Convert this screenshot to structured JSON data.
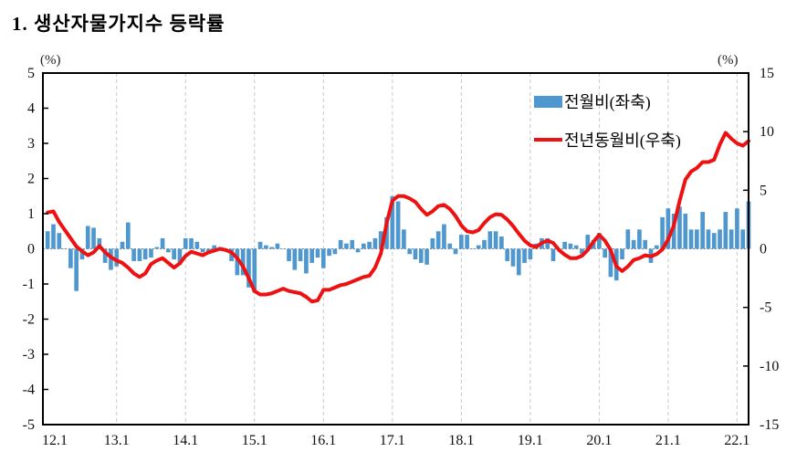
{
  "title": "1. 생산자물가지수 등락률",
  "left_axis": {
    "unit": "(%)",
    "min": -5,
    "max": 5,
    "ticks": [
      5,
      4,
      3,
      2,
      1,
      0,
      -1,
      -2,
      -3,
      -4,
      -5
    ]
  },
  "right_axis": {
    "unit": "(%)",
    "min": -15,
    "max": 15,
    "ticks": [
      15,
      10,
      5,
      0,
      -5,
      -10,
      -15
    ]
  },
  "x_axis": {
    "labels": [
      "12.1",
      "13.1",
      "14.1",
      "15.1",
      "16.1",
      "17.1",
      "18.1",
      "19.1",
      "20.1",
      "21.1",
      "22.1"
    ]
  },
  "legend": {
    "bar_label": "전월비(좌축)",
    "line_label": "전년동월비(우축)"
  },
  "colors": {
    "bar": "#4E97CF",
    "line": "#EE1111",
    "grid": "#c9c9c9",
    "zero": "#8a8a8a",
    "axis": "#000000"
  },
  "chart_data": {
    "type": "bar+line",
    "x_start": "2012.01",
    "x_end": "2022.03",
    "months_per_gridline": 12,
    "series": [
      {
        "name": "전월비(좌축)",
        "type": "bar",
        "axis": "left",
        "axis_range": [
          -5,
          5
        ],
        "values": [
          0.5,
          0.7,
          0.45,
          0.0,
          -0.55,
          -1.2,
          -0.3,
          0.65,
          0.6,
          0.3,
          -0.4,
          -0.6,
          -0.5,
          0.2,
          0.75,
          -0.35,
          -0.35,
          -0.3,
          -0.25,
          0.05,
          0.3,
          -0.1,
          -0.3,
          -0.45,
          0.3,
          0.3,
          0.2,
          -0.1,
          -0.15,
          0.1,
          0.05,
          -0.05,
          -0.35,
          -0.75,
          -0.75,
          -1.1,
          -1.25,
          0.2,
          0.1,
          0.05,
          0.15,
          0.0,
          -0.35,
          -0.6,
          -0.35,
          -0.7,
          -0.4,
          -0.25,
          -0.55,
          -0.2,
          -0.15,
          0.25,
          0.15,
          0.25,
          -0.1,
          0.15,
          0.2,
          0.3,
          0.5,
          0.9,
          1.5,
          1.35,
          0.55,
          -0.15,
          -0.3,
          -0.4,
          -0.45,
          0.3,
          0.5,
          0.7,
          0.15,
          -0.15,
          0.4,
          0.4,
          0.0,
          0.1,
          0.25,
          0.5,
          0.5,
          0.35,
          -0.35,
          -0.5,
          -0.75,
          -0.4,
          -0.3,
          0.15,
          0.3,
          0.3,
          -0.35,
          -0.05,
          0.2,
          0.15,
          0.1,
          -0.15,
          0.4,
          0.25,
          0.45,
          -0.25,
          -0.8,
          -0.9,
          -0.3,
          0.55,
          0.25,
          0.55,
          0.25,
          -0.4,
          0.1,
          0.9,
          1.15,
          1.0,
          1.2,
          1.0,
          0.55,
          0.55,
          1.05,
          0.55,
          0.45,
          0.55,
          1.05,
          0.55,
          1.15,
          0.55,
          1.35
        ]
      },
      {
        "name": "전년동월비(우축)",
        "type": "line",
        "axis": "right",
        "axis_range": [
          -15,
          15
        ],
        "values": [
          3.1,
          3.2,
          2.3,
          1.6,
          0.9,
          0.2,
          -0.2,
          -0.55,
          -0.3,
          0.25,
          -0.3,
          -0.7,
          -1.0,
          -1.2,
          -1.6,
          -2.1,
          -2.4,
          -2.1,
          -1.3,
          -1.0,
          -0.8,
          -1.2,
          -1.6,
          -1.25,
          -0.6,
          -0.25,
          -0.4,
          -0.55,
          -0.3,
          -0.15,
          0.0,
          -0.1,
          -0.3,
          -0.8,
          -1.5,
          -2.5,
          -3.6,
          -3.9,
          -3.9,
          -3.8,
          -3.6,
          -3.4,
          -3.6,
          -3.7,
          -3.8,
          -4.1,
          -4.5,
          -4.4,
          -3.5,
          -3.5,
          -3.3,
          -3.1,
          -3.0,
          -2.8,
          -2.6,
          -2.4,
          -2.3,
          -1.6,
          -0.4,
          2.2,
          4.1,
          4.5,
          4.5,
          4.3,
          4.0,
          3.4,
          2.9,
          3.2,
          3.65,
          3.75,
          3.4,
          2.8,
          2.0,
          1.5,
          1.4,
          1.6,
          2.2,
          2.7,
          2.95,
          2.9,
          2.5,
          1.95,
          1.3,
          0.7,
          0.3,
          0.15,
          0.5,
          0.7,
          0.5,
          -0.1,
          -0.5,
          -0.8,
          -0.8,
          -0.6,
          -0.1,
          0.6,
          1.2,
          0.7,
          -0.1,
          -1.5,
          -1.9,
          -1.5,
          -0.95,
          -0.8,
          -0.55,
          -0.65,
          -0.45,
          -0.05,
          0.8,
          2.0,
          4.1,
          5.9,
          6.6,
          6.9,
          7.4,
          7.4,
          7.6,
          8.9,
          9.9,
          9.4,
          9.0,
          8.8,
          9.2
        ]
      }
    ]
  }
}
